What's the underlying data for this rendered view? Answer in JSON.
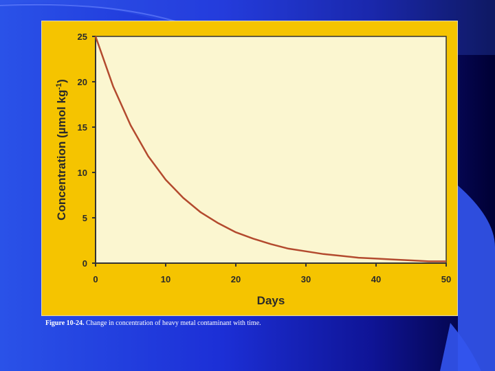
{
  "chart_data": {
    "type": "line",
    "xlabel": "Days",
    "ylabel": "Concentration (µmol kg",
    "ylabel_sup": "-1",
    "ylabel_close": ")",
    "xlim": [
      0,
      50
    ],
    "ylim": [
      0,
      25
    ],
    "xticks": [
      0,
      10,
      20,
      30,
      40,
      50
    ],
    "yticks": [
      0,
      5,
      10,
      15,
      20,
      25
    ],
    "grid": false,
    "series": [
      {
        "x": [
          0,
          2.5,
          5,
          7.5,
          10,
          12.5,
          15,
          17.5,
          20,
          22.5,
          25,
          27.5,
          30,
          32.5,
          35,
          37.5,
          40,
          42.5,
          45,
          47.5,
          50
        ],
        "y": [
          25.0,
          19.5,
          15.2,
          11.8,
          9.2,
          7.2,
          5.6,
          4.4,
          3.4,
          2.7,
          2.1,
          1.6,
          1.3,
          1.0,
          0.8,
          0.6,
          0.5,
          0.4,
          0.3,
          0.2,
          0.2
        ],
        "color": "#b34a2e"
      }
    ],
    "colors": {
      "plot_bg": "#fbf6d0",
      "panel_bg": "#f5c400",
      "axis": "#333333"
    }
  },
  "caption": {
    "label": "Figure 10-24.",
    "text": " Change in concentration of heavy metal contaminant with time."
  }
}
